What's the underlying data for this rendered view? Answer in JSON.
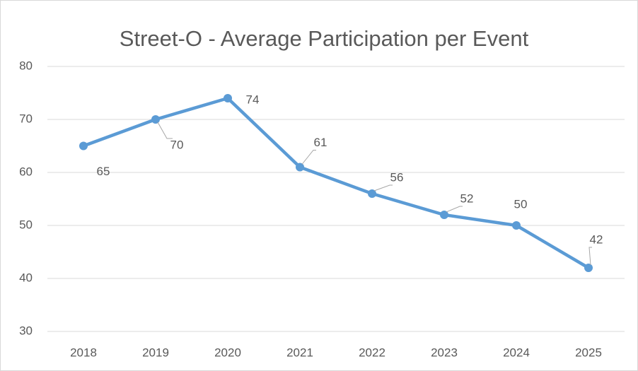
{
  "chart_data": {
    "type": "line",
    "title": "Street-O - Average Participation per Event",
    "categories": [
      "2018",
      "2019",
      "2020",
      "2021",
      "2022",
      "2023",
      "2024",
      "2025"
    ],
    "series": [
      {
        "name": "Average Participation",
        "color": "#5b9bd5",
        "values": [
          65,
          70,
          74,
          61,
          56,
          52,
          50,
          42
        ]
      }
    ],
    "ylim": [
      30,
      80
    ],
    "yticks": [
      30,
      40,
      50,
      60,
      70,
      80
    ],
    "grid": true
  }
}
